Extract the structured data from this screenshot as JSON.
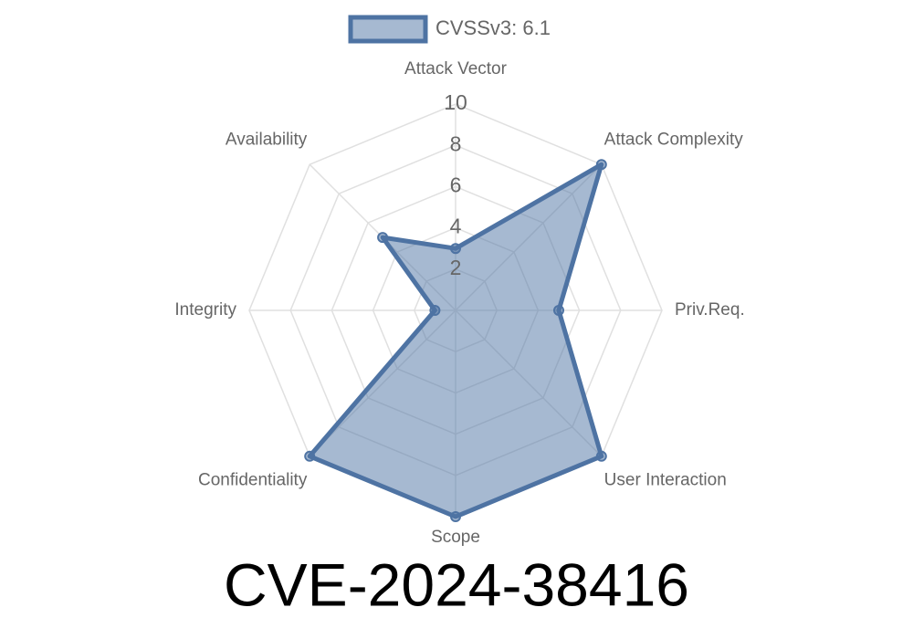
{
  "chart_data": {
    "type": "radar",
    "title": "CVE-2024-38416",
    "categories": [
      "Attack Vector",
      "Attack Complexity",
      "Priv.Req.",
      "User Interaction",
      "Scope",
      "Confidentiality",
      "Integrity",
      "Availability"
    ],
    "series": [
      {
        "name": "CVSSv3: 6.1",
        "color": "#4e73a3",
        "values": [
          3,
          10,
          5,
          10,
          10,
          10,
          1,
          5
        ]
      }
    ],
    "rlim": [
      0,
      10
    ],
    "rticks": [
      2,
      4,
      6,
      8,
      10
    ],
    "grid": true,
    "legend": "top"
  }
}
